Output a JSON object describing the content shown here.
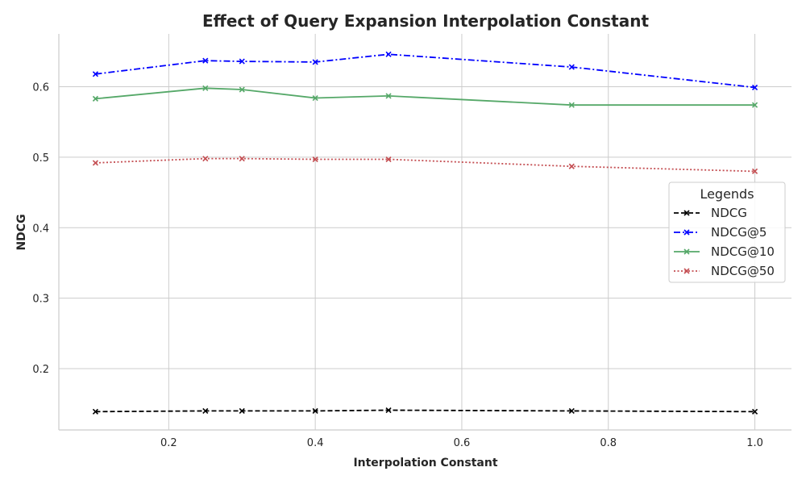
{
  "chart_data": {
    "type": "line",
    "title": "Effect of Query Expansion Interpolation Constant",
    "xlabel": "Interpolation Constant",
    "ylabel": "NDCG",
    "x": [
      0.1,
      0.25,
      0.3,
      0.4,
      0.5,
      0.75,
      1.0
    ],
    "xlim": [
      0.05,
      1.05
    ],
    "ylim": [
      0.113,
      0.675
    ],
    "xticks": [
      0.2,
      0.4,
      0.6,
      0.8,
      1.0
    ],
    "xtick_labels": [
      "0.2",
      "0.4",
      "0.6",
      "0.8",
      "1.0"
    ],
    "yticks": [
      0.2,
      0.3,
      0.4,
      0.5,
      0.6
    ],
    "ytick_labels": [
      "0.2",
      "0.3",
      "0.4",
      "0.5",
      "0.6"
    ],
    "grid": true,
    "legend": {
      "title": "Legends",
      "placement": "center-right"
    },
    "series": [
      {
        "name": "NDCG",
        "color": "#000000",
        "dash": "dashed",
        "marker": "x",
        "values": [
          0.139,
          0.14,
          0.14,
          0.14,
          0.141,
          0.14,
          0.139
        ]
      },
      {
        "name": "NDCG@5",
        "color": "#0000ff",
        "dash": "dashdot",
        "marker": "x",
        "values": [
          0.618,
          0.637,
          0.636,
          0.635,
          0.646,
          0.628,
          0.599
        ]
      },
      {
        "name": "NDCG@10",
        "color": "#55a868",
        "dash": "solid",
        "marker": "x",
        "values": [
          0.583,
          0.598,
          0.596,
          0.584,
          0.587,
          0.574,
          0.574
        ]
      },
      {
        "name": "NDCG@50",
        "color": "#c44e52",
        "dash": "dotted",
        "marker": "x",
        "values": [
          0.492,
          0.498,
          0.498,
          0.497,
          0.497,
          0.487,
          0.48
        ]
      }
    ]
  }
}
